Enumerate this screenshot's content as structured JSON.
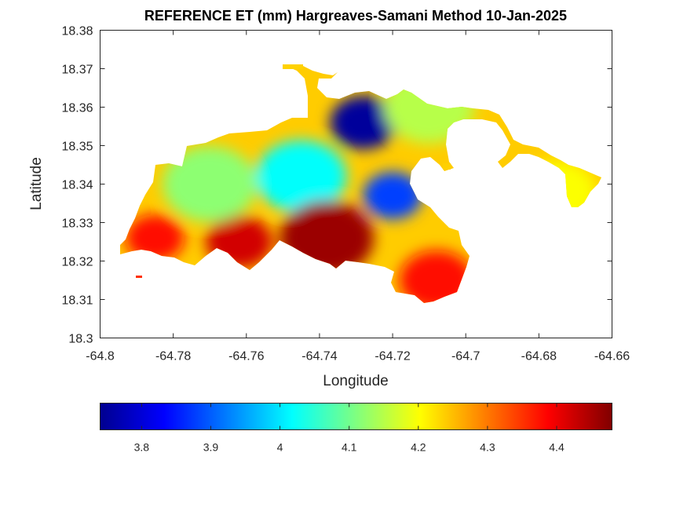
{
  "chart_data": {
    "type": "heatmap",
    "title": "REFERENCE ET (mm) Hargreaves-Samani Method  10-Jan-2025",
    "xlabel": "Longitude",
    "ylabel": "Latitude",
    "xlim": [
      -64.8,
      -64.66
    ],
    "ylim": [
      18.3,
      18.38
    ],
    "xticks": [
      "-64.8",
      "-64.78",
      "-64.76",
      "-64.74",
      "-64.72",
      "-64.7",
      "-64.68",
      "-64.66"
    ],
    "yticks": [
      "18.3",
      "18.31",
      "18.32",
      "18.33",
      "18.34",
      "18.35",
      "18.36",
      "18.37",
      "18.38"
    ],
    "grid": false,
    "colormap": "jet",
    "colorbar": {
      "location": "bottom",
      "range": [
        3.74,
        4.48
      ],
      "ticks": [
        "3.8",
        "3.9",
        "4",
        "4.1",
        "4.2",
        "4.3",
        "4.4"
      ]
    },
    "hotspots": [
      {
        "region": "north-central low",
        "lon": -64.728,
        "lat": 18.356,
        "value": 3.76
      },
      {
        "region": "central low",
        "lon": -64.72,
        "lat": 18.337,
        "value": 3.88
      },
      {
        "region": "west-central low",
        "lon": -64.745,
        "lat": 18.342,
        "value": 4.02
      },
      {
        "region": "south-central high",
        "lon": -64.738,
        "lat": 18.326,
        "value": 4.46
      },
      {
        "region": "south-west high",
        "lon": -64.762,
        "lat": 18.325,
        "value": 4.42
      },
      {
        "region": "far south-west high",
        "lon": -64.785,
        "lat": 18.326,
        "value": 4.38
      },
      {
        "region": "south-east high",
        "lon": -64.708,
        "lat": 18.315,
        "value": 4.38
      },
      {
        "region": "north-east arm",
        "lon": -64.71,
        "lat": 18.36,
        "value": 4.15
      },
      {
        "region": "east islet",
        "lon": -64.675,
        "lat": 18.338,
        "value": 4.2
      },
      {
        "region": "west plateau",
        "lon": -64.77,
        "lat": 18.34,
        "value": 4.12
      }
    ]
  }
}
